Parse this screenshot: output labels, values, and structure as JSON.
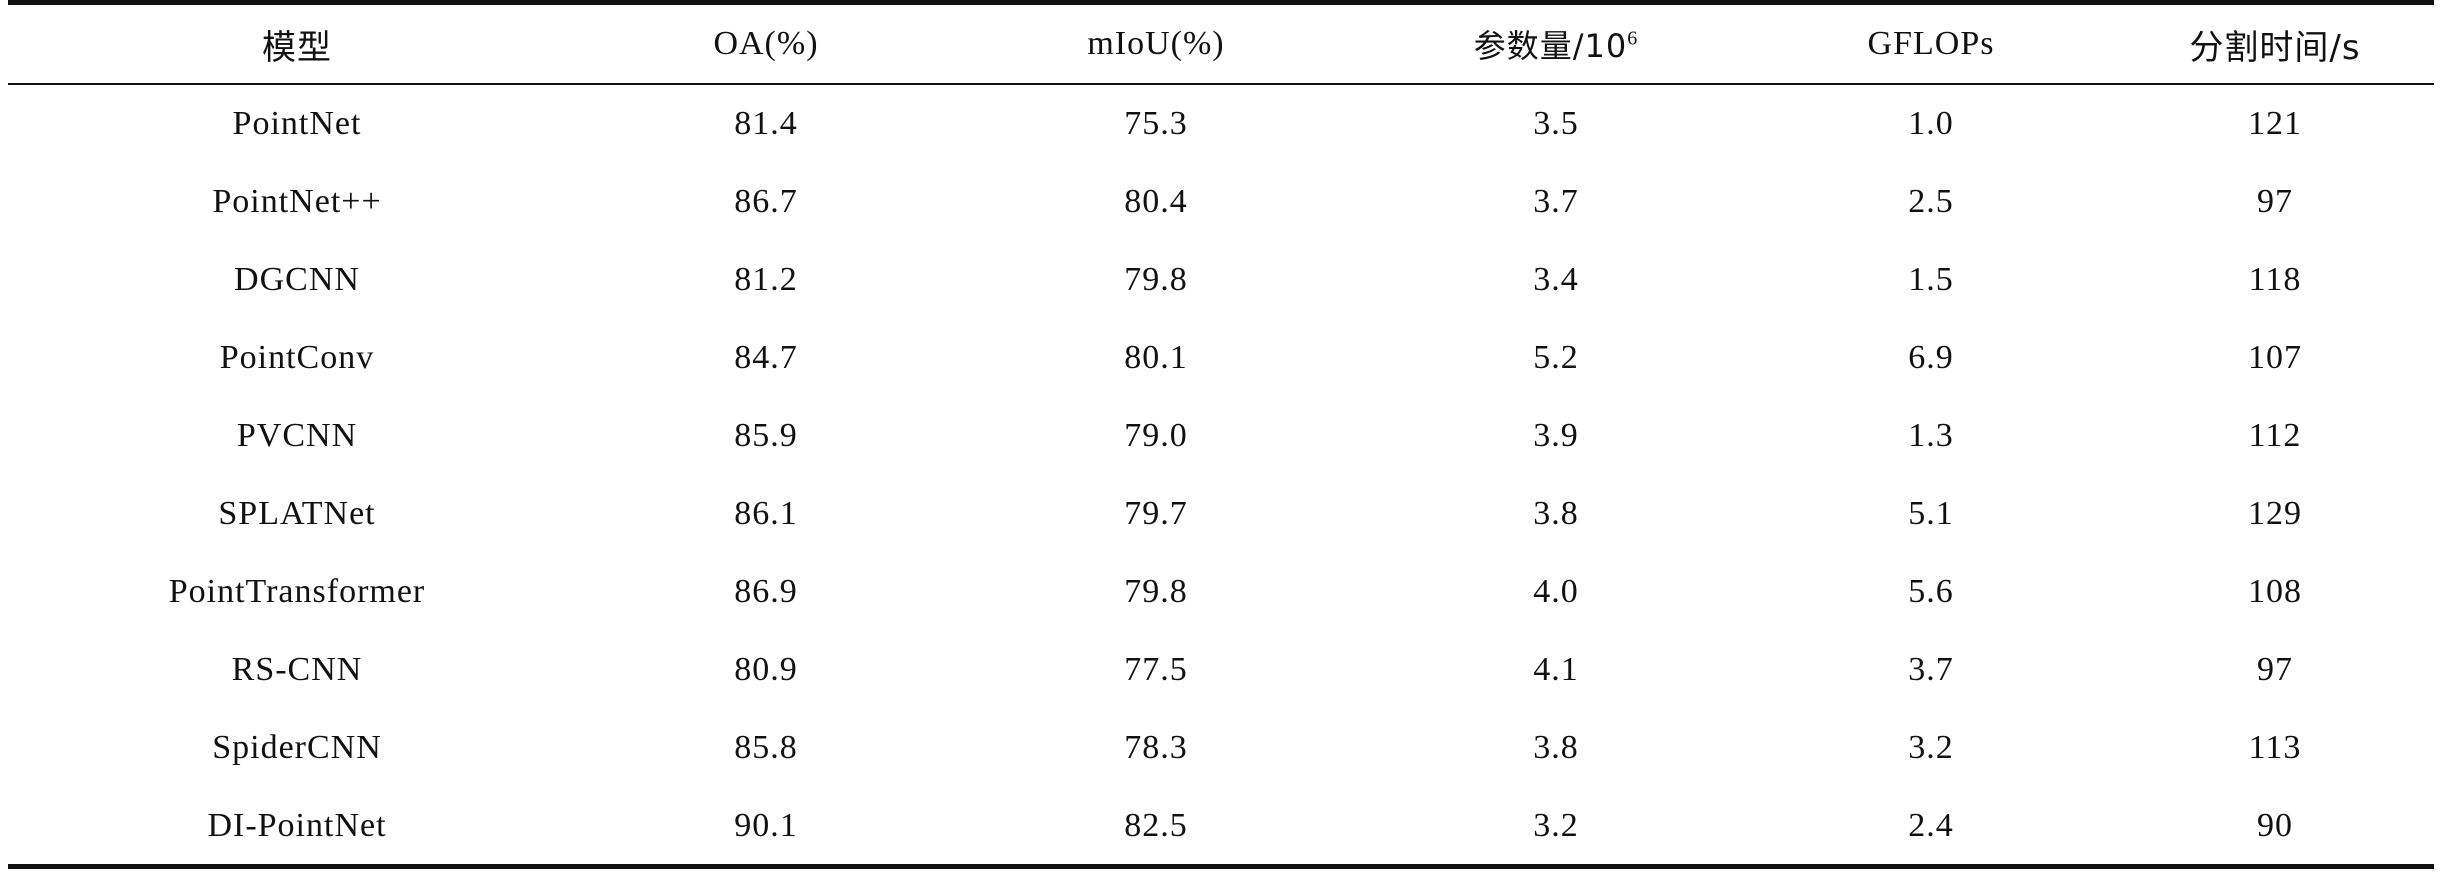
{
  "table": {
    "headers": {
      "model": "模型",
      "oa": "OA(%)",
      "miou": "mIoU(%)",
      "params_prefix": "参数量/10",
      "params_exp": "6",
      "gflops": "GFLOPs",
      "time": "分割时间/s"
    },
    "rows": [
      {
        "model": "PointNet",
        "oa": "81.4",
        "miou": "75.3",
        "params": "3.5",
        "gflops": "1.0",
        "time": "121"
      },
      {
        "model": "PointNet++",
        "oa": "86.7",
        "miou": "80.4",
        "params": "3.7",
        "gflops": "2.5",
        "time": "97"
      },
      {
        "model": "DGCNN",
        "oa": "81.2",
        "miou": "79.8",
        "params": "3.4",
        "gflops": "1.5",
        "time": "118"
      },
      {
        "model": "PointConv",
        "oa": "84.7",
        "miou": "80.1",
        "params": "5.2",
        "gflops": "6.9",
        "time": "107"
      },
      {
        "model": "PVCNN",
        "oa": "85.9",
        "miou": "79.0",
        "params": "3.9",
        "gflops": "1.3",
        "time": "112"
      },
      {
        "model": "SPLATNet",
        "oa": "86.1",
        "miou": "79.7",
        "params": "3.8",
        "gflops": "5.1",
        "time": "129"
      },
      {
        "model": "PointTransformer",
        "oa": "86.9",
        "miou": "79.8",
        "params": "4.0",
        "gflops": "5.6",
        "time": "108"
      },
      {
        "model": "RS-CNN",
        "oa": "80.9",
        "miou": "77.5",
        "params": "4.1",
        "gflops": "3.7",
        "time": "97"
      },
      {
        "model": "SpiderCNN",
        "oa": "85.8",
        "miou": "78.3",
        "params": "3.8",
        "gflops": "3.2",
        "time": "113"
      },
      {
        "model": "DI-PointNet",
        "oa": "90.1",
        "miou": "82.5",
        "params": "3.2",
        "gflops": "2.4",
        "time": "90"
      }
    ]
  }
}
